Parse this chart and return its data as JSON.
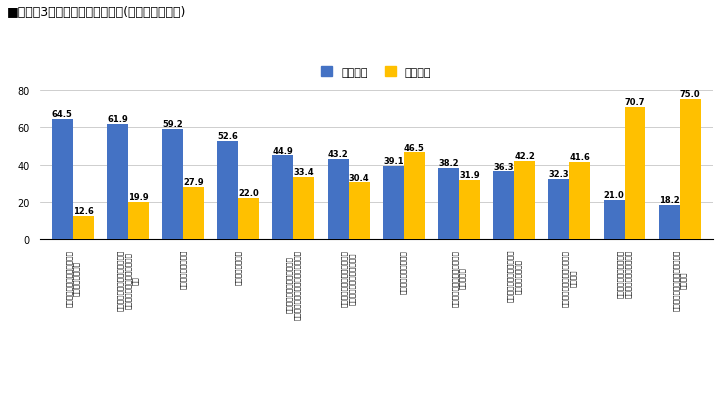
{
  "title": "■グラフ3　住まいの関心の有無(平屋選択者のみ)",
  "legend_ari": "関心あり",
  "legend_nashi": "関心なし",
  "bar_color_ari": "#4472C4",
  "bar_color_nashi": "#FFC000",
  "categories": [
    "自分の趣味を楽しめる空間や\n設備のある住まい",
    "オープンキッチンとダイニング\nが庭と連続した空間のある住\nまい",
    "庭の充実した住まい",
    "広縁がある住まい",
    "親世帯や子ども世帯など親族\nが自由に来られる部屋がある住まい",
    "軒が大きく張り出し、その下\nが半屋外空間がある住まい",
    "広い土間のある住まい",
    "同居するだけの広さが確保で\nきる住まい",
    "自宅で音楽鑑賞ができる設\n備をもった住まい",
    "料理を大勢で作ることができ\nる住まい",
    "部屋を兑用にして、経済\n的に余裕が出来る住まい",
    "家でフィットネスやジムが出来\nる住まい"
  ],
  "values_ari": [
    64.5,
    61.9,
    59.2,
    52.6,
    44.9,
    43.2,
    39.1,
    38.2,
    36.3,
    32.3,
    21.0,
    18.2
  ],
  "values_nashi": [
    12.6,
    19.9,
    27.9,
    22.0,
    33.4,
    30.4,
    46.5,
    31.9,
    42.2,
    41.6,
    70.7,
    75.0
  ],
  "ylim": [
    0,
    80
  ],
  "yticks": [
    0,
    20,
    40,
    60,
    80
  ],
  "background_color": "#FFFFFF",
  "grid_color": "#BBBBBB",
  "title_fontsize": 9,
  "value_fontsize": 6,
  "legend_fontsize": 8,
  "tick_fontsize": 5.2
}
